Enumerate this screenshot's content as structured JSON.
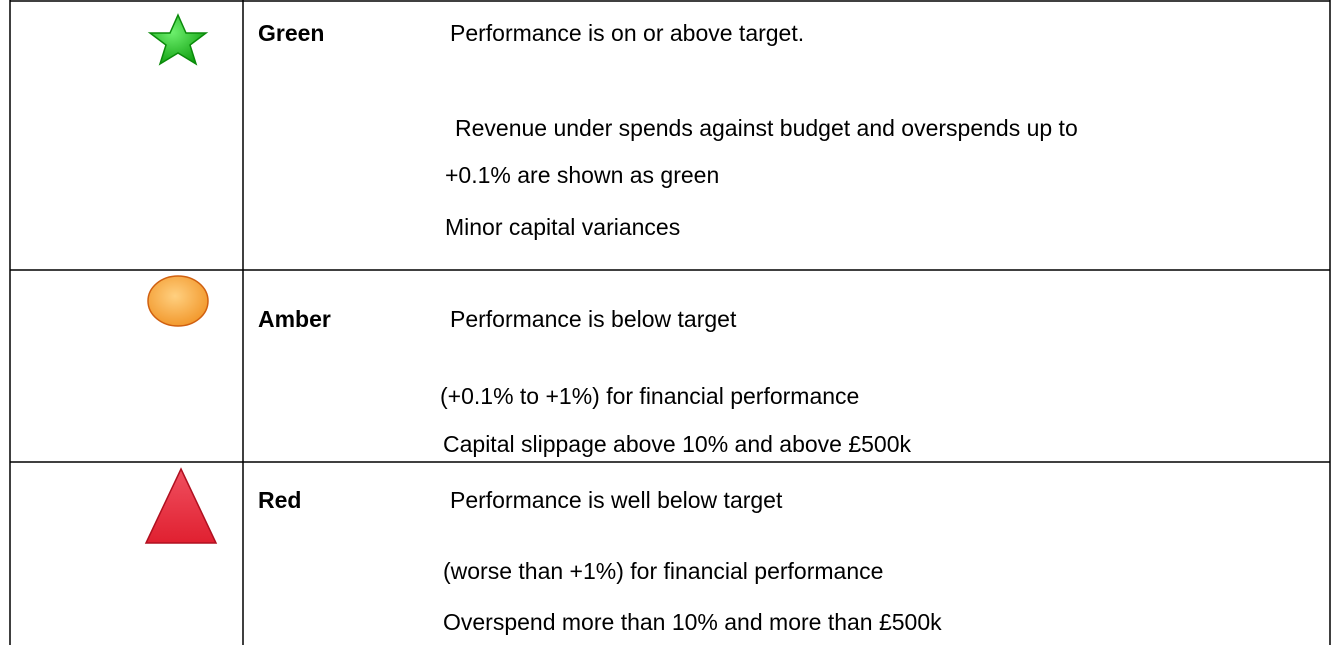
{
  "table": {
    "rows": [
      {
        "label": "Green",
        "lines": [
          "Performance is on or above target.",
          "Revenue under spends against budget and overspends up to",
          "+0.1% are shown as green",
          "Minor capital variances"
        ]
      },
      {
        "label": "Amber",
        "lines": [
          "Performance is below target",
          "(+0.1% to +1%) for financial performance",
          "Capital slippage above 10% and above £500k"
        ]
      },
      {
        "label": "Red",
        "lines": [
          "Performance is well below target",
          "(worse than +1%) for financial performance",
          "Overspend more than 10% and more than £500k"
        ]
      }
    ]
  }
}
